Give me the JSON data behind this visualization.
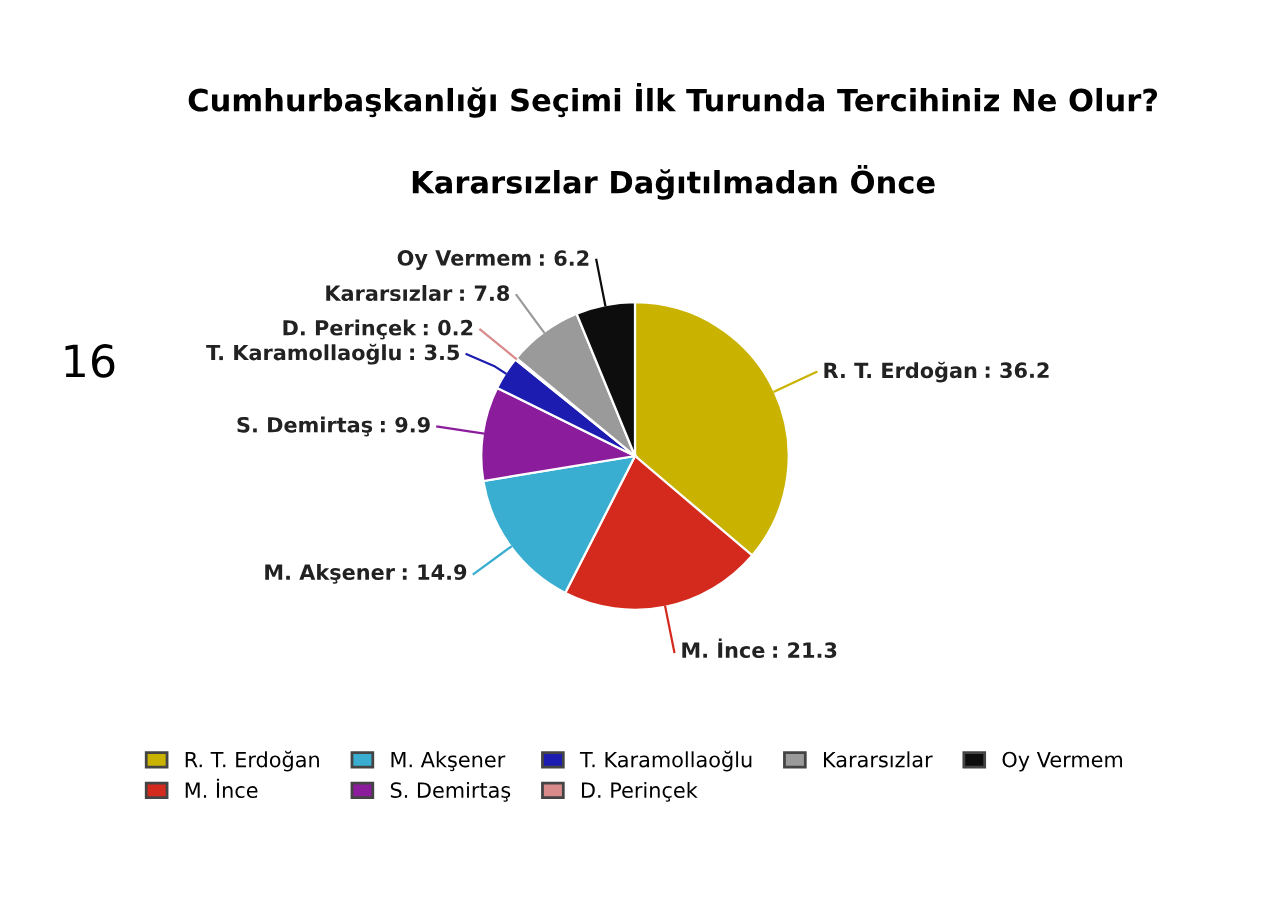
{
  "chart_data": {
    "type": "pie",
    "title": "Cumhurbaşkanlığı Seçimi İlk Turunda Tercihiniz Ne Olur?",
    "subtitle": "Kararsızlar Dağıtılmadan Önce",
    "categories": [
      "R. T. Erdoğan",
      "M. İnce",
      "M. Akşener",
      "S. Demirtaş",
      "T. Karamollaoğlu",
      "D. Perinçek",
      "Kararsızlar",
      "Oy Vermem"
    ],
    "values": [
      36.2,
      21.3,
      14.9,
      9.9,
      3.5,
      0.2,
      7.8,
      6.2
    ],
    "colors": [
      "#c9b300",
      "#d42a1e",
      "#3aaed0",
      "#8b1d9c",
      "#1c1cb0",
      "#d98a8a",
      "#9a9a9a",
      "#0d0d0d"
    ],
    "value_labels": [
      ": 36.2",
      ": 21.3",
      ": 14.9",
      ": 9.9",
      ": 3.5",
      ": 0.2",
      ": 7.8",
      ": 6.2"
    ],
    "legend": "bottom",
    "annotations": [
      "16"
    ]
  }
}
